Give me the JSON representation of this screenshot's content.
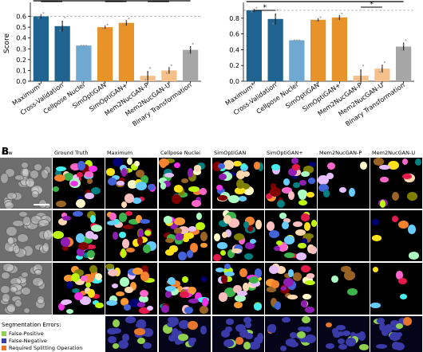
{
  "chart_data": [
    {
      "type": "bar",
      "ylabel": "Score",
      "ylim": [
        0,
        0.7
      ],
      "yticks": [
        "0.0",
        "0.1",
        "0.2",
        "0.3",
        "0.4",
        "0.5",
        "0.6"
      ],
      "yticks_values": [
        0,
        0.1,
        0.2,
        0.3,
        0.4,
        0.5,
        0.6
      ],
      "reference_line": 0.6,
      "categories": [
        "Maximum*",
        "Cross-Validation",
        "Cellpose Nuclei",
        "SimOptiGAN",
        "SimOptiGAN+",
        "Mem2NucGAN-P",
        "Mem2NucGAN-U",
        "Binary Transformation"
      ],
      "values": [
        0.6,
        0.51,
        0.33,
        0.5,
        0.54,
        0.05,
        0.1,
        0.29
      ],
      "errors": [
        0.02,
        0.05,
        0.0,
        0.015,
        0.025,
        0.045,
        0.03,
        0.035
      ],
      "colors": [
        "#1f6391",
        "#1f6391",
        "#6fa8d0",
        "#e8922a",
        "#e8922a",
        "#f5c08a",
        "#f5c08a",
        "#a6a6a6"
      ],
      "significance": [
        "*",
        "*",
        "*"
      ]
    },
    {
      "type": "bar",
      "ylabel": "",
      "ylim": [
        0,
        0.96
      ],
      "yticks": [
        "0.0",
        "0.2",
        "0.4",
        "0.6",
        "0.8"
      ],
      "yticks_values": [
        0,
        0.2,
        0.4,
        0.6,
        0.8
      ],
      "reference_line": 0.9,
      "categories": [
        "Maximum*",
        "Cross-Validation",
        "Cellpose Nuclei",
        "SimOptiGAN",
        "SimOptiGAN+",
        "Mem2NucGAN-P",
        "Mem2NucGAN-U",
        "Binary Transformation"
      ],
      "values": [
        0.9,
        0.79,
        0.52,
        0.78,
        0.81,
        0.07,
        0.16,
        0.44
      ],
      "errors": [
        0.02,
        0.07,
        0.0,
        0.02,
        0.03,
        0.08,
        0.05,
        0.05
      ],
      "colors": [
        "#1f6391",
        "#1f6391",
        "#6fa8d0",
        "#e8922a",
        "#e8922a",
        "#f5c08a",
        "#f5c08a",
        "#a6a6a6"
      ],
      "significance": [
        "*",
        "*"
      ]
    }
  ],
  "figure": {
    "panel_letter": "B",
    "columns": [
      "Raw",
      "Ground Truth",
      "Maximum",
      "Cellpose Nuclei",
      "SimOptiGAN",
      "SimOptiGAN+",
      "Mem2NucGAN-P",
      "Mem2NucGAN-U"
    ]
  },
  "legend": {
    "title": "Segmentation Errors:",
    "items": [
      {
        "label": "False-Positive",
        "color": "#8fd14f"
      },
      {
        "label": "False-Negative",
        "color": "#3a3aa8"
      },
      {
        "label": "Required Splitting Operation",
        "color": "#e8762a"
      }
    ]
  }
}
